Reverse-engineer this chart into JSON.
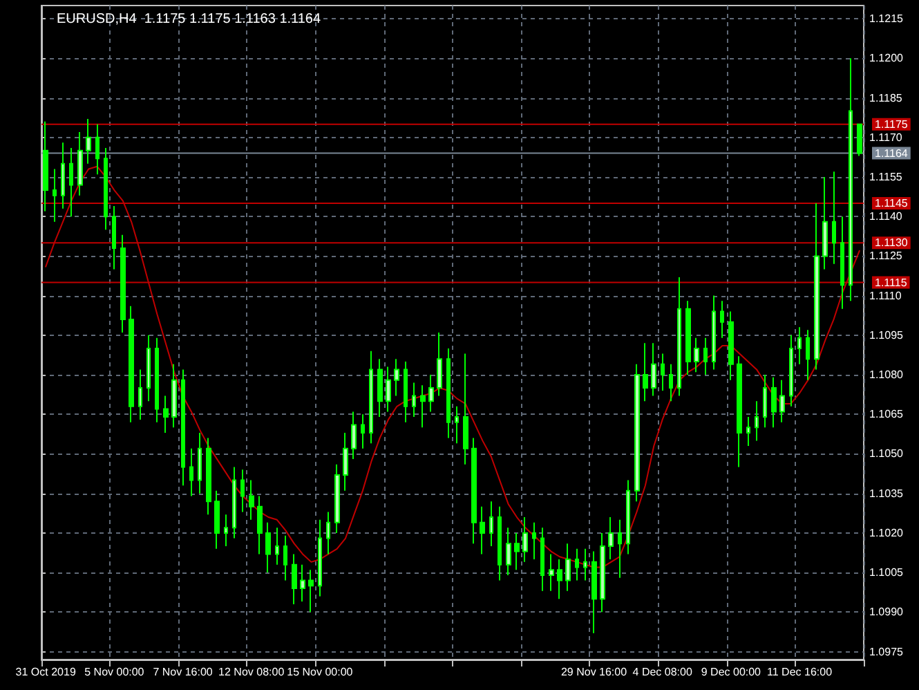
{
  "chart_data": {
    "type": "candlestick",
    "title": "EURUSD,H4  1.1175 1.1175 1.1163 1.1164",
    "color": "#00ff00",
    "categories": [
      "31 Oct 2019",
      null,
      null,
      null,
      null,
      null,
      null,
      null,
      "5 Nov 00:00",
      null,
      null,
      null,
      null,
      null,
      null,
      null,
      "7 Nov 16:00",
      null,
      null,
      null,
      null,
      null,
      null,
      null,
      "12 Nov 08:00",
      null,
      null,
      null,
      null,
      null,
      null,
      null,
      "15 Nov 00:00",
      null,
      null,
      null,
      null,
      null,
      null,
      null,
      null,
      null,
      null,
      null,
      null,
      null,
      null,
      null,
      null,
      null,
      null,
      null,
      null,
      null,
      null,
      null,
      null,
      null,
      null,
      null,
      null,
      null,
      null,
      null,
      "29 Nov 16:00",
      null,
      null,
      null,
      null,
      null,
      null,
      null,
      "4 Dec 08:00",
      null,
      null,
      null,
      null,
      null,
      null,
      null,
      "9 Dec 00:00",
      null,
      null,
      null,
      null,
      null,
      null,
      null,
      "11 Dec 16:00",
      null,
      null,
      null,
      null,
      null,
      null,
      null
    ],
    "ohlc": [
      [
        1.1165,
        1.1176,
        1.1142,
        1.115
      ],
      [
        1.115,
        1.1158,
        1.1138,
        1.1148
      ],
      [
        1.1148,
        1.1168,
        1.1143,
        1.116
      ],
      [
        1.116,
        1.1166,
        1.114,
        1.1152
      ],
      [
        1.1152,
        1.1172,
        1.1148,
        1.1165
      ],
      [
        1.1165,
        1.1177,
        1.116,
        1.117
      ],
      [
        1.117,
        1.1175,
        1.1156,
        1.1162
      ],
      [
        1.1162,
        1.1166,
        1.1135,
        1.114
      ],
      [
        1.114,
        1.1144,
        1.112,
        1.1128
      ],
      [
        1.1128,
        1.1133,
        1.1096,
        1.1101
      ],
      [
        1.1101,
        1.1106,
        1.1062,
        1.1068
      ],
      [
        1.1068,
        1.1082,
        1.1063,
        1.1075
      ],
      [
        1.1075,
        1.1095,
        1.107,
        1.109
      ],
      [
        1.109,
        1.1094,
        1.1062,
        1.1067
      ],
      [
        1.1067,
        1.1072,
        1.1058,
        1.1064
      ],
      [
        1.1064,
        1.1084,
        1.106,
        1.1078
      ],
      [
        1.1078,
        1.1082,
        1.1038,
        1.1045
      ],
      [
        1.1045,
        1.1052,
        1.1034,
        1.104
      ],
      [
        1.104,
        1.1058,
        1.1035,
        1.1052
      ],
      [
        1.1052,
        1.1056,
        1.1027,
        1.1032
      ],
      [
        1.1032,
        1.1036,
        1.1014,
        1.102
      ],
      [
        1.102,
        1.1027,
        1.1015,
        1.1022
      ],
      [
        1.1022,
        1.1045,
        1.1018,
        1.104
      ],
      [
        1.104,
        1.1044,
        1.1028,
        1.1034
      ],
      [
        1.1034,
        1.104,
        1.1025,
        1.103
      ],
      [
        1.103,
        1.1034,
        1.1012,
        1.102
      ],
      [
        1.102,
        1.1024,
        1.1005,
        1.1012
      ],
      [
        1.1012,
        1.1022,
        1.1008,
        1.1015
      ],
      [
        1.1015,
        1.1019,
        1.1002,
        1.1008
      ],
      [
        1.1008,
        1.1012,
        1.0993,
        1.0999
      ],
      [
        1.0999,
        1.1008,
        1.0994,
        1.1002
      ],
      [
        1.1002,
        1.1006,
        1.099,
        1.1
      ],
      [
        1.1,
        1.1025,
        1.0996,
        1.1018
      ],
      [
        1.1018,
        1.1028,
        1.1012,
        1.1024
      ],
      [
        1.1024,
        1.1046,
        1.102,
        1.1042
      ],
      [
        1.1042,
        1.1058,
        1.1036,
        1.1052
      ],
      [
        1.1052,
        1.1066,
        1.1048,
        1.1061
      ],
      [
        1.1061,
        1.1065,
        1.1052,
        1.1058
      ],
      [
        1.1058,
        1.1089,
        1.1054,
        1.1082
      ],
      [
        1.1082,
        1.1086,
        1.1064,
        1.107
      ],
      [
        1.107,
        1.1083,
        1.1066,
        1.1078
      ],
      [
        1.1078,
        1.1086,
        1.1072,
        1.1082
      ],
      [
        1.1082,
        1.1085,
        1.1062,
        1.1068
      ],
      [
        1.1068,
        1.1077,
        1.1064,
        1.1072
      ],
      [
        1.1072,
        1.1076,
        1.106,
        1.107
      ],
      [
        1.107,
        1.108,
        1.1066,
        1.1075
      ],
      [
        1.1075,
        1.1096,
        1.1072,
        1.1086
      ],
      [
        1.1086,
        1.109,
        1.1056,
        1.1062
      ],
      [
        1.1062,
        1.1068,
        1.1054,
        1.1064
      ],
      [
        1.1064,
        1.1088,
        1.1046,
        1.1052
      ],
      [
        1.1052,
        1.1056,
        1.1016,
        1.1024
      ],
      [
        1.1024,
        1.103,
        1.1012,
        1.102
      ],
      [
        1.102,
        1.1032,
        1.1015,
        1.1026
      ],
      [
        1.1026,
        1.103,
        1.1002,
        1.1008
      ],
      [
        1.1008,
        1.1022,
        1.1004,
        1.1016
      ],
      [
        1.1016,
        1.102,
        1.1006,
        1.1013
      ],
      [
        1.1013,
        1.1026,
        1.1009,
        1.102
      ],
      [
        1.102,
        1.1024,
        1.101,
        1.1018
      ],
      [
        1.1018,
        1.1022,
        1.0998,
        1.1004
      ],
      [
        1.1004,
        1.1012,
        1.0998,
        1.1006
      ],
      [
        1.1006,
        1.101,
        1.0995,
        1.1002
      ],
      [
        1.1002,
        1.1016,
        1.0998,
        1.101
      ],
      [
        1.101,
        1.1014,
        1.1002,
        1.1007
      ],
      [
        1.1007,
        1.1014,
        1.1002,
        1.1009
      ],
      [
        1.1009,
        1.1013,
        1.0982,
        1.0995
      ],
      [
        1.0995,
        1.102,
        1.099,
        1.1015
      ],
      [
        1.1015,
        1.1026,
        1.101,
        1.102
      ],
      [
        1.102,
        1.1025,
        1.1003,
        1.1016
      ],
      [
        1.1016,
        1.104,
        1.1012,
        1.1036
      ],
      [
        1.1036,
        1.1084,
        1.1032,
        1.108
      ],
      [
        1.108,
        1.1092,
        1.107,
        1.1075
      ],
      [
        1.1075,
        1.1092,
        1.1072,
        1.1084
      ],
      [
        1.1084,
        1.1088,
        1.1074,
        1.108
      ],
      [
        1.108,
        1.1084,
        1.107,
        1.1075
      ],
      [
        1.1075,
        1.1117,
        1.1072,
        1.1105
      ],
      [
        1.1105,
        1.1108,
        1.108,
        1.1085
      ],
      [
        1.1085,
        1.1094,
        1.1081,
        1.109
      ],
      [
        1.109,
        1.1094,
        1.108,
        1.1085
      ],
      [
        1.1085,
        1.111,
        1.1082,
        1.1104
      ],
      [
        1.1104,
        1.1108,
        1.1094,
        1.11
      ],
      [
        1.11,
        1.1104,
        1.1078,
        1.1084
      ],
      [
        1.1084,
        1.1087,
        1.1045,
        1.1058
      ],
      [
        1.1058,
        1.1064,
        1.1053,
        1.106
      ],
      [
        1.106,
        1.107,
        1.1055,
        1.1064
      ],
      [
        1.1064,
        1.108,
        1.106,
        1.1075
      ],
      [
        1.1075,
        1.1079,
        1.106,
        1.1066
      ],
      [
        1.1066,
        1.1078,
        1.1062,
        1.1072
      ],
      [
        1.1072,
        1.1095,
        1.1068,
        1.109
      ],
      [
        1.109,
        1.1098,
        1.1084,
        1.1094
      ],
      [
        1.1094,
        1.1097,
        1.1078,
        1.1086
      ],
      [
        1.1086,
        1.1145,
        1.1082,
        1.1125
      ],
      [
        1.1125,
        1.1155,
        1.112,
        1.1138
      ],
      [
        1.1138,
        1.1157,
        1.1122,
        1.113
      ],
      [
        1.113,
        1.114,
        1.1105,
        1.1114
      ],
      [
        1.1114,
        1.12,
        1.1108,
        1.118
      ],
      [
        1.1175,
        1.1175,
        1.1163,
        1.1164
      ]
    ],
    "series": [
      {
        "type": "line",
        "color": "#c00000",
        "values": [
          1.1121,
          1.113,
          1.1138,
          1.1146,
          1.1153,
          1.1158,
          1.1159,
          1.1155,
          1.115,
          1.1146,
          1.1138,
          1.1127,
          1.1115,
          1.1103,
          1.1092,
          1.1081,
          1.1072,
          1.1066,
          1.1059,
          1.1053,
          1.1048,
          1.1043,
          1.1038,
          1.1034,
          1.1031,
          1.1028,
          1.1026,
          1.1025,
          1.1021,
          1.1016,
          1.1012,
          1.1009,
          1.101,
          1.1012,
          1.1014,
          1.1018,
          1.1027,
          1.1036,
          1.1047,
          1.1056,
          1.1063,
          1.1068,
          1.107,
          1.1071,
          1.1072,
          1.1073,
          1.1075,
          1.1074,
          1.1071,
          1.1069,
          1.1062,
          1.1055,
          1.1049,
          1.104,
          1.1031,
          1.1026,
          1.1022,
          1.1019,
          1.1016,
          1.1013,
          1.1011,
          1.101,
          1.1009,
          1.1008,
          1.1007,
          1.1007,
          1.1009,
          1.1011,
          1.1019,
          1.1028,
          1.1038,
          1.1053,
          1.1063,
          1.1071,
          1.1078,
          1.1081,
          1.1083,
          1.1086,
          1.1088,
          1.1091,
          1.1091,
          1.1088,
          1.1085,
          1.1082,
          1.1077,
          1.1072,
          1.1069,
          1.1069,
          1.1073,
          1.1078,
          1.1084,
          1.1093,
          1.1101,
          1.1111,
          1.1119,
          1.1127
        ]
      }
    ],
    "ylim": [
      1.0972,
      1.122
    ],
    "yticks": [
      1.0975,
      {
        "value": 1.099,
        "label": "1.0990"
      },
      1.1005,
      {
        "value": 1.102,
        "label": "1.1020"
      },
      1.1035,
      {
        "value": 1.105,
        "label": "1.1050"
      },
      1.1065,
      {
        "value": 1.108,
        "label": "1.1080"
      },
      1.1095,
      {
        "value": 1.111,
        "label": "1.1110"
      },
      1.1125,
      {
        "value": 1.114,
        "label": "1.1140"
      },
      1.1155,
      {
        "value": 1.117,
        "label": "1.1170"
      },
      1.1185,
      {
        "value": 1.12,
        "label": "1.1200"
      },
      1.1215
    ],
    "ref_lines": [
      {
        "axis": "y",
        "value": 1.1175,
        "label": "1.1175",
        "color": "#c00000"
      },
      {
        "axis": "y",
        "value": 1.1164,
        "label": "1.1164",
        "color": "#7a8796"
      },
      {
        "axis": "y",
        "value": 1.1145,
        "label": "1.1145",
        "color": "#c00000"
      },
      {
        "axis": "y",
        "value": 1.113,
        "label": "1.1130",
        "color": "#c00000"
      },
      {
        "axis": "y",
        "value": 1.1115,
        "label": "1.1115",
        "color": "#c00000"
      }
    ],
    "grid": true,
    "marker": "none",
    "line_style": "solid"
  }
}
